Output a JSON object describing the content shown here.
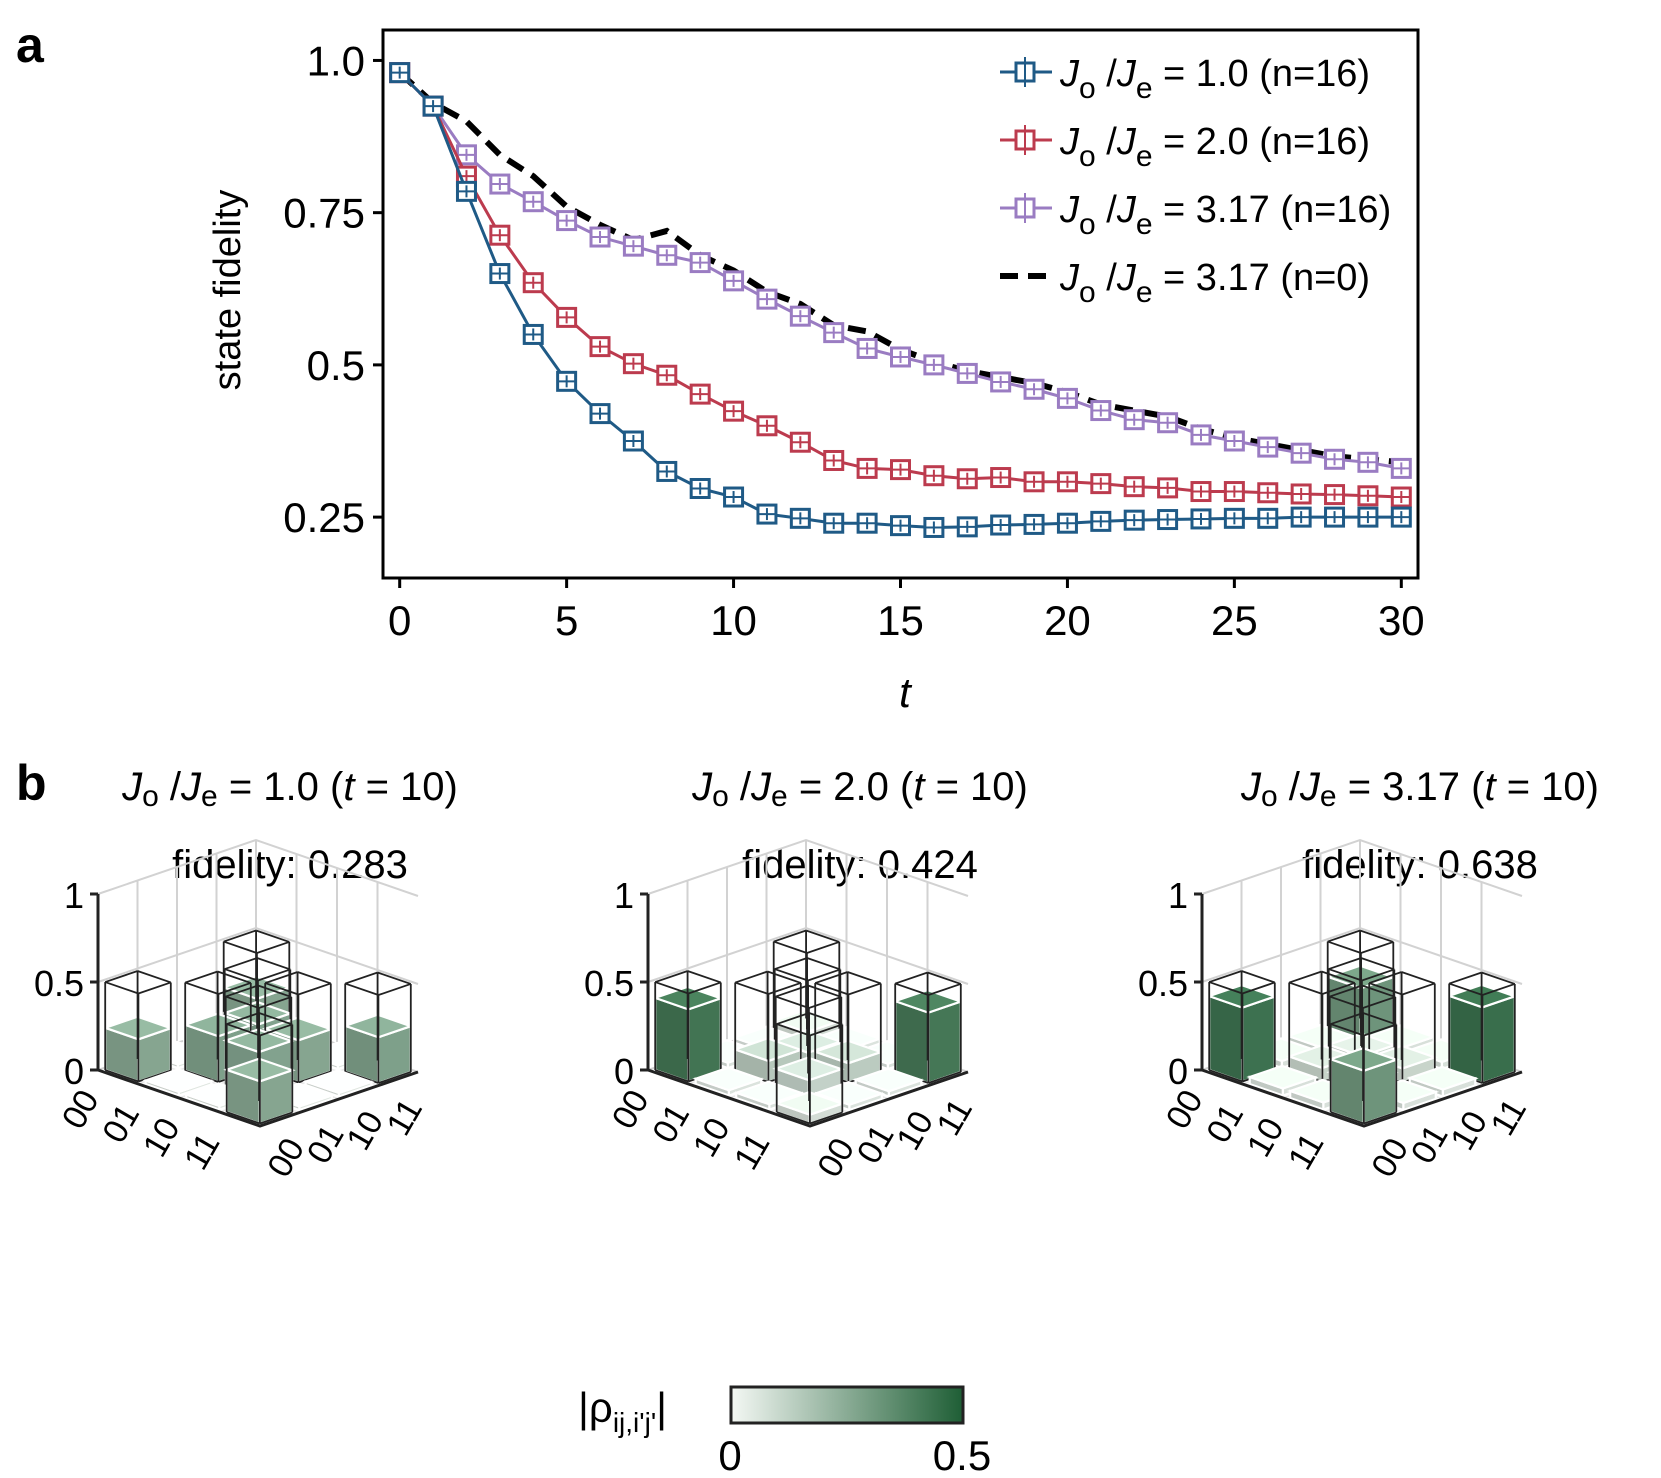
{
  "panel_labels": {
    "a": "a",
    "b": "b"
  },
  "colors": {
    "blue": "#1f5a86",
    "red": "#bc3b4e",
    "purple": "#9a7cc2",
    "black": "#000000",
    "green_dark": "#1e5e35",
    "green_light": "#f4f8f4",
    "outline": "#222222"
  },
  "chart_data": [
    {
      "type": "line",
      "panel": "a",
      "xlabel": "t",
      "ylabel": "state fidelity",
      "xlim": [
        -0.5,
        30.5
      ],
      "ylim": [
        0.15,
        1.05
      ],
      "xticks": [
        "0",
        "5",
        "10",
        "15",
        "20",
        "25",
        "30"
      ],
      "yticks": [
        "0.25",
        "0.5",
        "0.75",
        "1.0"
      ],
      "legend_position": "top-right",
      "x": [
        0,
        1,
        2,
        3,
        4,
        5,
        6,
        7,
        8,
        9,
        10,
        11,
        12,
        13,
        14,
        15,
        16,
        17,
        18,
        19,
        20,
        21,
        22,
        23,
        24,
        25,
        26,
        27,
        28,
        29,
        30
      ],
      "series": [
        {
          "name_ratio": "J",
          "legend": {
            "j1": "J",
            "sub1": "o",
            "slash": "/",
            "j2": "J",
            "sub2": "e",
            "rest": " = 1.0 (n=16)"
          },
          "color_key": "blue",
          "style": "marker",
          "values": [
            0.98,
            0.925,
            0.785,
            0.65,
            0.55,
            0.473,
            0.42,
            0.375,
            0.325,
            0.297,
            0.283,
            0.255,
            0.248,
            0.24,
            0.24,
            0.236,
            0.233,
            0.234,
            0.237,
            0.238,
            0.24,
            0.243,
            0.245,
            0.246,
            0.247,
            0.248,
            0.248,
            0.25,
            0.25,
            0.25,
            0.25
          ]
        },
        {
          "name_ratio": "J",
          "legend": {
            "j1": "J",
            "sub1": "o",
            "slash": "/",
            "j2": "J",
            "sub2": "e",
            "rest": " = 2.0 (n=16)"
          },
          "color_key": "red",
          "style": "marker",
          "values": [
            0.98,
            0.925,
            0.81,
            0.713,
            0.635,
            0.578,
            0.53,
            0.502,
            0.483,
            0.452,
            0.424,
            0.4,
            0.373,
            0.343,
            0.33,
            0.328,
            0.318,
            0.313,
            0.315,
            0.308,
            0.308,
            0.305,
            0.3,
            0.298,
            0.292,
            0.292,
            0.29,
            0.288,
            0.287,
            0.285,
            0.283
          ]
        },
        {
          "name_ratio": "J",
          "legend": {
            "j1": "J",
            "sub1": "o",
            "slash": "/",
            "j2": "J",
            "sub2": "e",
            "rest": " = 3.17 (n=16)"
          },
          "color_key": "purple",
          "style": "marker",
          "values": [
            0.98,
            0.925,
            0.845,
            0.797,
            0.768,
            0.737,
            0.71,
            0.695,
            0.68,
            0.668,
            0.638,
            0.608,
            0.58,
            0.553,
            0.527,
            0.513,
            0.5,
            0.486,
            0.472,
            0.46,
            0.445,
            0.425,
            0.41,
            0.405,
            0.385,
            0.375,
            0.365,
            0.355,
            0.345,
            0.34,
            0.33
          ]
        },
        {
          "name_ratio": "J",
          "legend": {
            "j1": "J",
            "sub1": "o",
            "slash": "/",
            "j2": "J",
            "sub2": "e",
            "rest": " = 3.17 (n=0)"
          },
          "color_key": "black",
          "style": "dashed",
          "values": [
            0.98,
            0.93,
            0.9,
            0.845,
            0.81,
            0.76,
            0.73,
            0.705,
            0.72,
            0.68,
            0.655,
            0.62,
            0.6,
            0.565,
            0.555,
            0.525,
            0.505,
            0.49,
            0.48,
            0.47,
            0.455,
            0.435,
            0.425,
            0.415,
            0.395,
            0.38,
            0.37,
            0.36,
            0.35,
            0.345,
            0.34
          ]
        }
      ]
    },
    {
      "type": "bar3d",
      "panel": "b",
      "zticks": [
        "0",
        "0.5",
        "1"
      ],
      "zlim": [
        0,
        1
      ],
      "row_labels": [
        "00",
        "01",
        "10",
        "11"
      ],
      "col_labels": [
        "00",
        "01",
        "10",
        "11"
      ],
      "colorbar": {
        "label_main": "|ρ",
        "label_sub": "ij,i'j'",
        "label_end": "|",
        "min": "0",
        "max": "0.5",
        "range": [
          0,
          0.5
        ]
      },
      "ideal_diagonal": [
        0.5,
        0,
        0,
        0.5
      ],
      "ideal_anti_diagonal": [
        0.5,
        0.5
      ],
      "plots": [
        {
          "title": {
            "j1": "J",
            "sub1": "o",
            "slash": "/",
            "j2": "J",
            "sub2": "e",
            "value": "= 1.0 (",
            "t": "t",
            "tval": " = 10)"
          },
          "fidelity": "fidelity: 0.283",
          "matrix": [
            [
              0.24,
              0.02,
              0.02,
              0.24
            ],
            [
              0.02,
              0.26,
              0.25,
              0.02
            ],
            [
              0.02,
              0.25,
              0.24,
              0.02
            ],
            [
              0.24,
              0.02,
              0.02,
              0.26
            ]
          ]
        },
        {
          "title": {
            "j1": "J",
            "sub1": "o",
            "slash": "/",
            "j2": "J",
            "sub2": "e",
            "value": "= 2.0 (",
            "t": "t",
            "tval": " = 10)"
          },
          "fidelity": "fidelity: 0.424",
          "matrix": [
            [
              0.41,
              0.03,
              0.03,
              0.05
            ],
            [
              0.03,
              0.12,
              0.09,
              0.03
            ],
            [
              0.03,
              0.09,
              0.11,
              0.03
            ],
            [
              0.05,
              0.03,
              0.03,
              0.4
            ]
          ]
        },
        {
          "title": {
            "j1": "J",
            "sub1": "o",
            "slash": "/",
            "j2": "J",
            "sub2": "e",
            "value": "= 3.17 (",
            "t": "t",
            "tval": " = 10)"
          },
          "fidelity": "fidelity: 0.638",
          "matrix": [
            [
              0.42,
              0.04,
              0.04,
              0.3
            ],
            [
              0.04,
              0.08,
              0.07,
              0.04
            ],
            [
              0.04,
              0.07,
              0.08,
              0.04
            ],
            [
              0.3,
              0.04,
              0.04,
              0.43
            ]
          ]
        }
      ]
    }
  ]
}
